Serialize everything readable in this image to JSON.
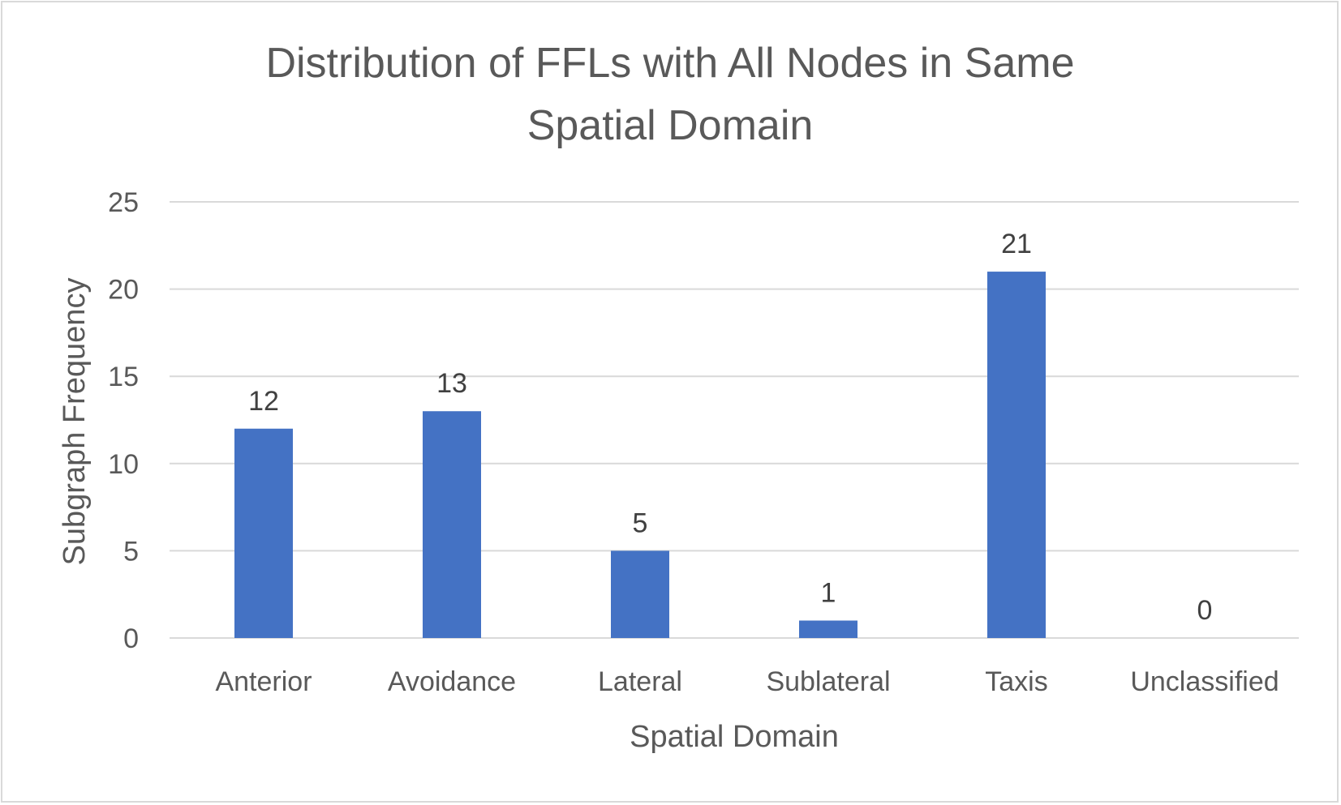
{
  "chart_data": {
    "type": "bar",
    "title_lines": [
      "Distribution of FFLs with All Nodes in Same",
      "Spatial Domain"
    ],
    "xlabel": "Spatial Domain",
    "ylabel": "Subgraph Frequency",
    "categories": [
      "Anterior",
      "Avoidance",
      "Lateral",
      "Sublateral",
      "Taxis",
      "Unclassified"
    ],
    "values": [
      12,
      13,
      5,
      1,
      21,
      0
    ],
    "data_labels": [
      "12",
      "13",
      "5",
      "1",
      "21",
      "0"
    ],
    "ylim": [
      0,
      25
    ],
    "yticks": [
      0,
      5,
      10,
      15,
      20,
      25
    ],
    "grid": true,
    "legend": "none",
    "bar_color": "#4472c4",
    "grid_color": "#d9d9d9"
  }
}
